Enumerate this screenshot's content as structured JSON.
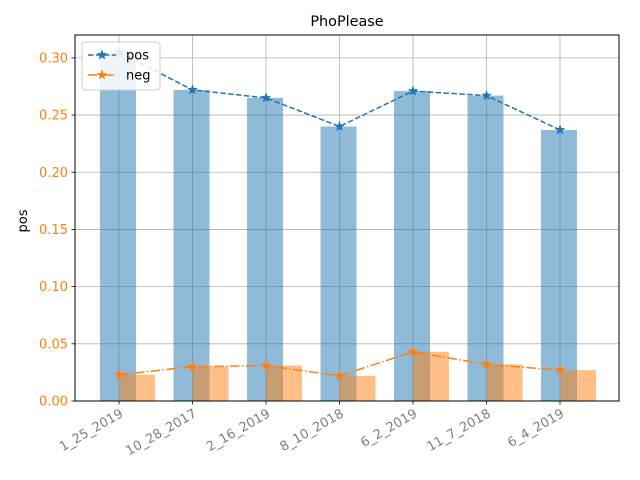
{
  "chart_data": {
    "type": "bar",
    "title": "PhoPlease",
    "xlabel": "",
    "ylabel": "pos",
    "ylim": [
      0,
      0.32
    ],
    "yticks": [
      "0.00",
      "0.05",
      "0.10",
      "0.15",
      "0.20",
      "0.25",
      "0.30"
    ],
    "categories": [
      "1_25_2019",
      "10_28_2017",
      "2_16_2019",
      "8_10_2018",
      "6_2_2019",
      "11_7_2018",
      "6_4_2019"
    ],
    "grid": true,
    "legend_position": "top-left",
    "series": [
      {
        "name": "pos",
        "color": "#1f77b4",
        "bar_alpha": 0.5,
        "line_style": "dashed",
        "marker": "star",
        "values": [
          0.305,
          0.272,
          0.265,
          0.24,
          0.271,
          0.267,
          0.237
        ]
      },
      {
        "name": "neg",
        "color": "#ff7f0e",
        "bar_alpha": 0.5,
        "line_style": "dashdot",
        "marker": "star",
        "values": [
          0.023,
          0.03,
          0.031,
          0.022,
          0.043,
          0.032,
          0.027
        ]
      }
    ]
  }
}
